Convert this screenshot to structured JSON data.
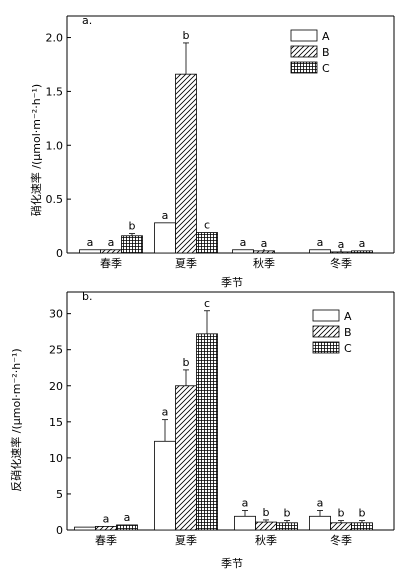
{
  "chart_data": [
    {
      "type": "bar",
      "panel_label": "a.",
      "categories": [
        "春季",
        "夏季",
        "秋季",
        "冬季"
      ],
      "xlabel": "季节",
      "ylabel": "硝化速率 /(μmol·m⁻²·h⁻¹)",
      "ylim": [
        0,
        2.2
      ],
      "yticks": [
        "0",
        "0.5",
        "1.0",
        "1.5",
        "2.0"
      ],
      "legend_position": "top-right",
      "series": [
        {
          "name": "A",
          "pattern": "empty",
          "values": [
            0.03,
            0.28,
            0.03,
            0.03
          ],
          "errors": [
            0.0,
            0.0,
            0.0,
            0.0
          ],
          "labels": [
            "a",
            "a",
            "a",
            "a"
          ]
        },
        {
          "name": "B",
          "pattern": "hatch",
          "values": [
            0.03,
            1.66,
            0.02,
            0.01
          ],
          "errors": [
            0.0,
            0.29,
            0.0,
            0.0
          ],
          "labels": [
            "a",
            "b",
            "a",
            "a"
          ]
        },
        {
          "name": "C",
          "pattern": "grid",
          "values": [
            0.16,
            0.19,
            0.0,
            0.02
          ],
          "errors": [
            0.02,
            0.0,
            0.0,
            0.0
          ],
          "labels": [
            "b",
            "c",
            "",
            "a"
          ]
        }
      ]
    },
    {
      "type": "bar",
      "panel_label": "b.",
      "categories": [
        "春季",
        "夏季",
        "秋季",
        "冬季"
      ],
      "xlabel": "季节",
      "ylabel": "反硝化速率 /(μmol·m⁻²·h⁻¹)",
      "ylim": [
        0,
        33
      ],
      "yticks": [
        "0",
        "5",
        "10",
        "15",
        "20",
        "25",
        "30"
      ],
      "legend_position": "top-right",
      "series": [
        {
          "name": "A",
          "pattern": "empty",
          "values": [
            0.4,
            12.3,
            1.9,
            1.9
          ],
          "errors": [
            0.0,
            3.0,
            0.8,
            0.8
          ],
          "labels": [
            "",
            "a",
            "a",
            "a"
          ]
        },
        {
          "name": "B",
          "pattern": "hatch",
          "values": [
            0.5,
            20.0,
            1.1,
            1.0
          ],
          "errors": [
            0.0,
            2.2,
            0.3,
            0.3
          ],
          "labels": [
            "a",
            "b",
            "b",
            "b"
          ]
        },
        {
          "name": "C",
          "pattern": "grid",
          "values": [
            0.7,
            27.2,
            1.0,
            1.0
          ],
          "errors": [
            0.0,
            3.2,
            0.3,
            0.3
          ],
          "labels": [
            "a",
            "c",
            "b",
            "b"
          ]
        }
      ]
    }
  ]
}
